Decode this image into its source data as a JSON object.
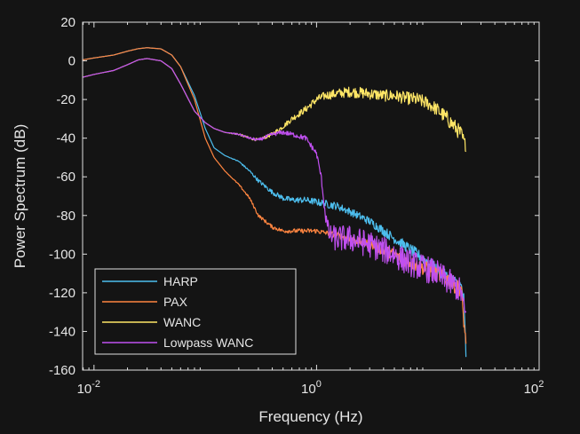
{
  "chart_data": {
    "type": "line",
    "xlabel": "Frequency (Hz)",
    "ylabel": "Power Spectrum (dB)",
    "xscale": "log",
    "xlim": [
      0.0079,
      100
    ],
    "ylim": [
      -160,
      20
    ],
    "xticks": [
      {
        "value": 0.01,
        "base": "10",
        "exp": "-2"
      },
      {
        "value": 1,
        "base": "10",
        "exp": "0"
      },
      {
        "value": 100,
        "base": "10",
        "exp": "2"
      }
    ],
    "yticks": [
      "20",
      "0",
      "-20",
      "-40",
      "-60",
      "-80",
      "-100",
      "-120",
      "-140",
      "-160"
    ],
    "grid": false,
    "legend_position": "bottom-left",
    "series": [
      {
        "name": "HARP",
        "color": "#4DBEEE",
        "x": [
          0.0079,
          0.01,
          0.015,
          0.02,
          0.025,
          0.03,
          0.04,
          0.05,
          0.06,
          0.08,
          0.1,
          0.12,
          0.15,
          0.2,
          0.25,
          0.3,
          0.4,
          0.5,
          0.6,
          0.8,
          1.0,
          1.2,
          1.5,
          2,
          3,
          4,
          5,
          6,
          8,
          10,
          12,
          15,
          18,
          20,
          21,
          22
        ],
        "y": [
          0.5,
          1.5,
          3,
          5,
          6.3,
          6.8,
          6.2,
          3,
          -3,
          -18,
          -35,
          -45,
          -49,
          -52,
          -57,
          -62,
          -68,
          -71,
          -72,
          -72,
          -73,
          -74,
          -75,
          -78,
          -83,
          -88,
          -92,
          -95,
          -100,
          -104,
          -108,
          -112,
          -115,
          -117,
          -123,
          -152
        ],
        "noise": [
          0,
          0,
          0,
          0,
          0,
          0,
          0,
          0,
          0,
          0,
          0,
          0,
          0,
          0.3,
          0.6,
          1.0,
          1.2,
          1.4,
          1.5,
          1.6,
          1.8,
          2,
          2,
          2,
          2.2,
          2.5,
          2.6,
          2.8,
          3,
          3,
          3.2,
          3.2,
          3.5,
          3.5,
          4,
          3
        ]
      },
      {
        "name": "PAX",
        "color": "#FF8540",
        "x": [
          0.0079,
          0.01,
          0.015,
          0.02,
          0.025,
          0.03,
          0.04,
          0.05,
          0.06,
          0.08,
          0.1,
          0.12,
          0.15,
          0.2,
          0.25,
          0.3,
          0.4,
          0.5,
          0.6,
          0.8,
          1.0,
          1.2,
          1.5,
          2,
          3,
          4,
          5,
          6,
          8,
          10,
          12,
          15,
          18,
          20,
          21,
          22
        ],
        "y": [
          0.5,
          1.5,
          3,
          5,
          6.3,
          6.8,
          6.2,
          3,
          -3,
          -20,
          -40,
          -50,
          -57,
          -64,
          -71,
          -80,
          -86,
          -88,
          -88,
          -88,
          -88,
          -89,
          -90,
          -92,
          -95,
          -98,
          -100,
          -103,
          -106,
          -108,
          -110,
          -113,
          -117,
          -118,
          -135,
          -145
        ],
        "noise": [
          0,
          0,
          0,
          0,
          0,
          0,
          0,
          0,
          0,
          0,
          0,
          0,
          0,
          0.4,
          0.6,
          0.8,
          1.0,
          1.0,
          1.1,
          1.2,
          1.3,
          1.3,
          1.5,
          1.8,
          2.2,
          2.8,
          3,
          3,
          3.5,
          4,
          4,
          4,
          4,
          4,
          3,
          2
        ]
      },
      {
        "name": "WANC",
        "color": "#FFE666",
        "x": [
          0.0079,
          0.01,
          0.015,
          0.02,
          0.025,
          0.03,
          0.04,
          0.05,
          0.06,
          0.08,
          0.1,
          0.12,
          0.15,
          0.2,
          0.25,
          0.3,
          0.4,
          0.5,
          0.6,
          0.8,
          1.0,
          1.2,
          1.5,
          2,
          3,
          4,
          5,
          6,
          8,
          10,
          12,
          15,
          18,
          20,
          21,
          22
        ],
        "y": [
          -8.5,
          -7,
          -5,
          -2,
          0.5,
          1.2,
          0,
          -4,
          -12,
          -26,
          -32,
          -35,
          -37,
          -38,
          -40,
          -41,
          -38,
          -34,
          -30,
          -25,
          -20,
          -18,
          -17,
          -16,
          -17,
          -18,
          -18,
          -19,
          -20,
          -22,
          -25,
          -30,
          -35,
          -38,
          -42,
          -44
        ],
        "noise": [
          0,
          0,
          0,
          0,
          0,
          0,
          0,
          0,
          0,
          0,
          0,
          0,
          0,
          0.5,
          0.6,
          0.8,
          1.0,
          1.2,
          1.5,
          1.8,
          2,
          2.2,
          2.5,
          2.8,
          3,
          3,
          3.2,
          3.2,
          3.5,
          3.5,
          3.5,
          4,
          4,
          4,
          4,
          3
        ]
      },
      {
        "name": "Lowpass WANC",
        "color": "#C050F0",
        "x": [
          0.0079,
          0.01,
          0.015,
          0.02,
          0.025,
          0.03,
          0.04,
          0.05,
          0.06,
          0.08,
          0.1,
          0.12,
          0.15,
          0.2,
          0.25,
          0.3,
          0.4,
          0.5,
          0.6,
          0.8,
          1.0,
          1.1,
          1.2,
          1.3,
          1.5,
          2,
          3,
          4,
          5,
          6,
          8,
          10,
          12,
          15,
          18,
          20,
          21,
          22
        ],
        "y": [
          -8.5,
          -7,
          -5,
          -2,
          0.5,
          1.2,
          0,
          -4,
          -12,
          -26,
          -32,
          -35,
          -37,
          -38,
          -40,
          -41,
          -38,
          -37,
          -38,
          -40,
          -48,
          -60,
          -80,
          -90,
          -92,
          -92,
          -95,
          -98,
          -100,
          -103,
          -106,
          -108,
          -110,
          -114,
          -117,
          -120,
          -128,
          -132
        ],
        "noise": [
          0,
          0,
          0,
          0,
          0,
          0,
          0,
          0,
          0,
          0,
          0,
          0,
          0,
          0.5,
          0.6,
          0.8,
          1.0,
          1.2,
          1.2,
          1.4,
          1.5,
          1.5,
          3,
          5,
          7,
          7,
          7,
          7,
          7,
          7,
          7,
          7,
          7,
          7,
          7,
          7,
          6,
          5
        ]
      }
    ]
  }
}
